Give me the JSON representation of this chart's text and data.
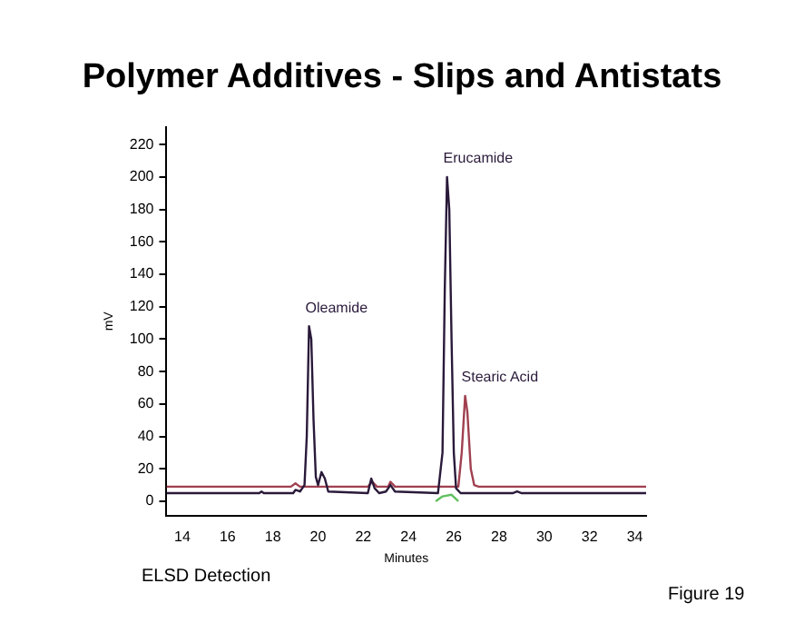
{
  "chart_data": {
    "type": "line",
    "title": "Polymer Additives - Slips and Antistats",
    "xlabel": "Minutes",
    "ylabel": "mV",
    "xlim": [
      13.3,
      34.5
    ],
    "xticks": [
      14,
      16,
      18,
      20,
      22,
      24,
      26,
      28,
      30,
      32,
      34
    ],
    "ylim": [
      -9,
      231
    ],
    "yticks": [
      0,
      20,
      40,
      60,
      80,
      100,
      120,
      140,
      160,
      180,
      200,
      220
    ],
    "grid": false,
    "legend": false,
    "marker": "none",
    "line_style": "solid",
    "series": [
      {
        "color": "#2a1a3a",
        "x": [
          13.3,
          17.4,
          17.5,
          17.6,
          18.9,
          19.0,
          19.2,
          19.4,
          19.5,
          19.6,
          19.7,
          19.8,
          19.9,
          20.0,
          20.15,
          20.3,
          20.45,
          22.2,
          22.35,
          22.5,
          22.7,
          23.0,
          23.2,
          23.4,
          25.3,
          25.5,
          25.6,
          25.7,
          25.8,
          25.9,
          26.0,
          26.1,
          26.3,
          28.6,
          28.8,
          29.0,
          34.5
        ],
        "values": [
          5,
          5,
          6,
          5,
          5,
          7,
          6,
          10,
          40,
          108,
          100,
          50,
          15,
          10,
          18,
          14,
          6,
          5,
          14,
          8,
          5,
          6,
          10,
          6,
          5,
          30,
          130,
          200,
          180,
          100,
          30,
          8,
          5,
          5,
          6,
          5,
          5
        ]
      },
      {
        "color": "#a04050",
        "x": [
          13.3,
          18.8,
          19.0,
          19.2,
          22.2,
          22.4,
          22.6,
          23.1,
          23.2,
          23.4,
          26.2,
          26.35,
          26.5,
          26.6,
          26.75,
          26.9,
          27.1,
          34.5
        ],
        "values": [
          9,
          9,
          11,
          9,
          9,
          12,
          9,
          9,
          12,
          9,
          9,
          30,
          65,
          55,
          20,
          10,
          9,
          9
        ]
      },
      {
        "color": "#60c060",
        "x": [
          25.2,
          25.5,
          25.9,
          26.2
        ],
        "values": [
          0,
          3,
          4,
          0
        ]
      }
    ],
    "annotations": [
      {
        "text": "Oleamide",
        "x": 19.6,
        "y": 108
      },
      {
        "text": "Erucamide",
        "x": 25.7,
        "y": 200
      },
      {
        "text": "Stearic Acid",
        "x": 26.5,
        "y": 65
      },
      "ELSD Detection",
      "Figure 19"
    ]
  }
}
